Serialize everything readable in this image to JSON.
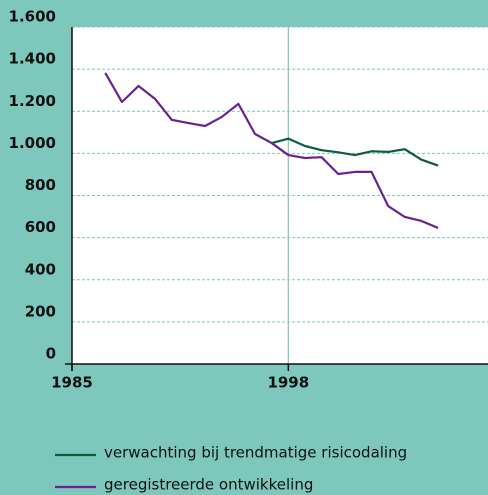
{
  "chart_data": {
    "type": "line",
    "x": [
      1987,
      1988,
      1989,
      1990,
      1991,
      1992,
      1993,
      1994,
      1995,
      1996,
      1997,
      1998,
      1999,
      2000,
      2001,
      2002,
      2003,
      2004,
      2005,
      2006,
      2007
    ],
    "series": [
      {
        "name": "verwachting bij trendmatige risicodaling",
        "color": "#0d5c3e",
        "values": [
          null,
          null,
          null,
          null,
          null,
          null,
          null,
          null,
          null,
          null,
          1049,
          1070,
          1035,
          1015,
          1005,
          992,
          1010,
          1007,
          1020,
          970,
          942
        ]
      },
      {
        "name": "geregistreerde ontwikkeling",
        "color": "#6b2290",
        "values": [
          1382,
          1244,
          1320,
          1258,
          1159,
          1144,
          1130,
          1173,
          1235,
          1092,
          1049,
          992,
          978,
          982,
          902,
          912,
          912,
          750,
          698,
          679,
          646
        ]
      }
    ],
    "xlim": [
      1985,
      2010
    ],
    "xticks": [
      1985,
      1998
    ],
    "ylim": [
      0,
      1600
    ],
    "yticks": [
      0,
      200,
      400,
      600,
      800,
      {
        "value": 1000,
        "label": "1.000"
      },
      {
        "value": 1200,
        "label": "1.200"
      },
      {
        "value": 1400,
        "label": "1.400"
      },
      {
        "value": 1600,
        "label": "1.600"
      }
    ],
    "grid": true
  }
}
